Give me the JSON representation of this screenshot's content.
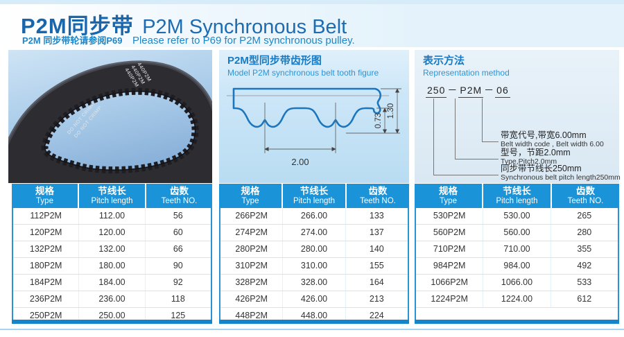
{
  "header": {
    "title_zh": "P2M同步带",
    "title_en": "P2M Synchronous Belt",
    "note_zh": "P2M 同步带轮请参阅P69",
    "note_en": "Please refer to P69 for P2M synchronous pulley."
  },
  "belt_photo": {
    "print_line_1": "DO NOT CRIMP",
    "print_line_2": "440P2M"
  },
  "tooth_figure": {
    "title_zh": "P2M型同步带齿形图",
    "title_en": "Model P2M synchronous belt tooth figure",
    "dim_pitch": "2.00",
    "dim_tooth_height": "0.73",
    "dim_thickness": "1.30"
  },
  "representation": {
    "title_zh": "表示方法",
    "title_en": "Representation method",
    "code_parts": [
      "250",
      "P2M",
      "06"
    ],
    "separator": "－",
    "annotations": [
      {
        "zh": "带宽代号,带宽6.00mm",
        "en": "Belt width code , Belt width 6.00"
      },
      {
        "zh": "型号，节距2.0mm",
        "en": "Type,Pitch2.0mm"
      },
      {
        "zh": "同步带节线长250mm",
        "en": "Synchronous belt pitch length250mm"
      }
    ]
  },
  "tables": {
    "columns": [
      {
        "zh": "规格",
        "en": "Type"
      },
      {
        "zh": "节线长",
        "en": "Pitch length"
      },
      {
        "zh": "齿数",
        "en": "Teeth NO."
      }
    ],
    "groups": [
      {
        "rows": [
          [
            "112P2M",
            "112.00",
            "56"
          ],
          [
            "120P2M",
            "120.00",
            "60"
          ],
          [
            "132P2M",
            "132.00",
            "66"
          ],
          [
            "180P2M",
            "180.00",
            "90"
          ],
          [
            "184P2M",
            "184.00",
            "92"
          ],
          [
            "236P2M",
            "236.00",
            "118"
          ],
          [
            "250P2M",
            "250.00",
            "125"
          ]
        ]
      },
      {
        "rows": [
          [
            "266P2M",
            "266.00",
            "133"
          ],
          [
            "274P2M",
            "274.00",
            "137"
          ],
          [
            "280P2M",
            "280.00",
            "140"
          ],
          [
            "310P2M",
            "310.00",
            "155"
          ],
          [
            "328P2M",
            "328.00",
            "164"
          ],
          [
            "426P2M",
            "426.00",
            "213"
          ],
          [
            "448P2M",
            "448.00",
            "224"
          ]
        ]
      },
      {
        "rows": [
          [
            "530P2M",
            "530.00",
            "265"
          ],
          [
            "560P2M",
            "560.00",
            "280"
          ],
          [
            "710P2M",
            "710.00",
            "355"
          ],
          [
            "984P2M",
            "984.00",
            "492"
          ],
          [
            "1066P2M",
            "1066.00",
            "533"
          ],
          [
            "1224P2M",
            "1224.00",
            "612"
          ]
        ]
      }
    ]
  },
  "colors": {
    "accent_blue": "#1b93d8",
    "title_blue": "#1a66ad",
    "panel_title_blue": "#187ac2",
    "profile_line_blue": "#1b76bd"
  }
}
